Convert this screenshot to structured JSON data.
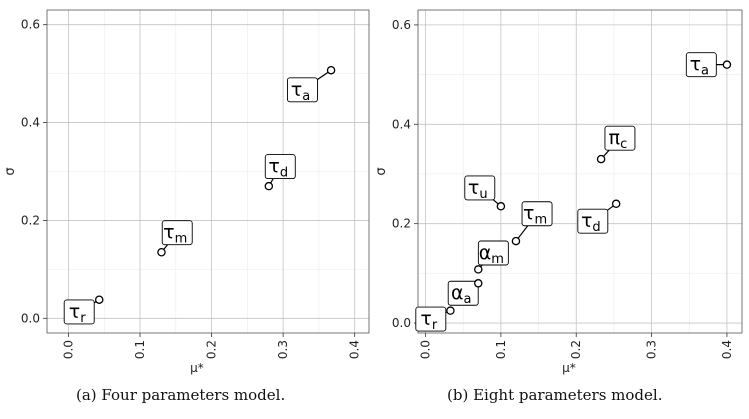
{
  "chart_data": [
    {
      "type": "scatter",
      "title": "",
      "xlabel": "μ*",
      "ylabel": "σ",
      "xlim": [
        -0.03,
        0.42
      ],
      "ylim": [
        -0.03,
        0.63
      ],
      "xticks": [
        0.0,
        0.1,
        0.2,
        0.3,
        0.4
      ],
      "yticks": [
        0.0,
        0.2,
        0.4,
        0.6
      ],
      "xtick_labels": [
        "0.0",
        "0.1",
        "0.2",
        "0.3",
        "0.4"
      ],
      "ytick_labels": [
        "0.0",
        "0.2",
        "0.4",
        "0.6"
      ],
      "grid": true,
      "points": [
        {
          "label": "τ",
          "sub": "r",
          "x": 0.043,
          "y": 0.038,
          "lx": 0.015,
          "ly": 0.013
        },
        {
          "label": "τ",
          "sub": "m",
          "x": 0.13,
          "y": 0.135,
          "lx": 0.152,
          "ly": 0.175
        },
        {
          "label": "τ",
          "sub": "d",
          "x": 0.28,
          "y": 0.27,
          "lx": 0.296,
          "ly": 0.31
        },
        {
          "label": "τ",
          "sub": "a",
          "x": 0.367,
          "y": 0.507,
          "lx": 0.327,
          "ly": 0.467
        }
      ]
    },
    {
      "type": "scatter",
      "title": "",
      "xlabel": "μ*",
      "ylabel": "σ",
      "xlim": [
        -0.01,
        0.42
      ],
      "ylim": [
        -0.02,
        0.63
      ],
      "xticks": [
        0.0,
        0.1,
        0.2,
        0.3,
        0.4
      ],
      "yticks": [
        0.0,
        0.2,
        0.4,
        0.6
      ],
      "xtick_labels": [
        "0.0",
        "0.1",
        "0.2",
        "0.3",
        "0.4"
      ],
      "ytick_labels": [
        "0.0",
        "0.2",
        "0.4",
        "0.6"
      ],
      "grid": true,
      "points": [
        {
          "label": "τ",
          "sub": "r",
          "x": 0.033,
          "y": 0.025,
          "lx": 0.007,
          "ly": 0.008
        },
        {
          "label": "α",
          "sub": "a",
          "x": 0.07,
          "y": 0.08,
          "lx": 0.05,
          "ly": 0.06
        },
        {
          "label": "α",
          "sub": "m",
          "x": 0.07,
          "y": 0.108,
          "lx": 0.09,
          "ly": 0.141
        },
        {
          "label": "τ",
          "sub": "m",
          "x": 0.12,
          "y": 0.165,
          "lx": 0.148,
          "ly": 0.22
        },
        {
          "label": "τ",
          "sub": "u",
          "x": 0.1,
          "y": 0.235,
          "lx": 0.072,
          "ly": 0.272
        },
        {
          "label": "τ",
          "sub": "d",
          "x": 0.253,
          "y": 0.24,
          "lx": 0.222,
          "ly": 0.205
        },
        {
          "label": "π",
          "sub": "c",
          "x": 0.233,
          "y": 0.33,
          "lx": 0.258,
          "ly": 0.372
        },
        {
          "label": "τ",
          "sub": "a",
          "x": 0.4,
          "y": 0.52,
          "lx": 0.366,
          "ly": 0.52
        }
      ]
    }
  ],
  "captions": [
    "(a)  Four parameters model.",
    "(b)  Eight parameters model."
  ]
}
